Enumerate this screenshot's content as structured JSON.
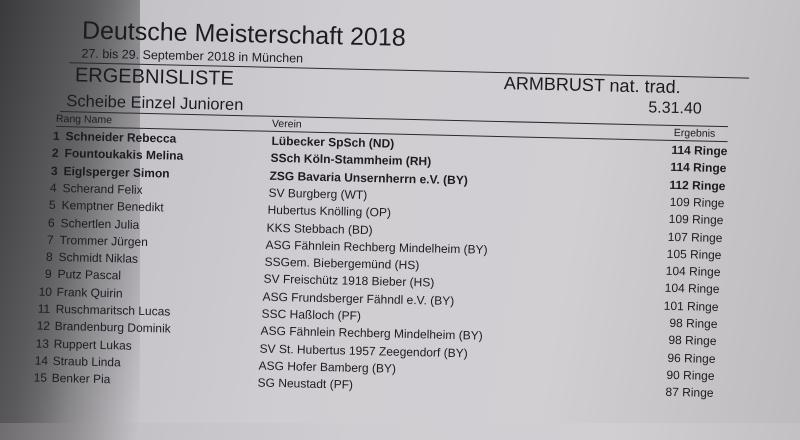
{
  "header": {
    "title": "Deutsche Meisterschaft  2018",
    "subtitle": "27. bis 29. September 2018  in  München",
    "list_title": "ERGEBNISLISTE",
    "discipline": "ARMBRUST  nat. trad.",
    "event": "Scheibe Einzel Junioren",
    "event_code": "5.31.40"
  },
  "columns": {
    "rank": "Rang",
    "name": "Name",
    "club": "Verein",
    "result": "Ergebnis"
  },
  "rows": [
    {
      "rank": "1",
      "name": "Schneider Rebecca",
      "club": "Lübecker SpSch   (ND)",
      "result": "114 Ringe",
      "bold": true
    },
    {
      "rank": "2",
      "name": "Fountoukakis Melina",
      "club": "SSch Köln-Stammheim   (RH)",
      "result": "114 Ringe",
      "bold": true
    },
    {
      "rank": "3",
      "name": "Eiglsperger Simon",
      "club": "ZSG Bavaria Unsernherrn e.V.   (BY)",
      "result": "112 Ringe",
      "bold": true
    },
    {
      "rank": "4",
      "name": "Scherand Felix",
      "club": "SV Burgberg   (WT)",
      "result": "109 Ringe"
    },
    {
      "rank": "5",
      "name": "Kemptner Benedikt",
      "club": "Hubertus Knölling   (OP)",
      "result": "109 Ringe"
    },
    {
      "rank": "6",
      "name": "Schertlen Julia",
      "club": "KKS Stebbach   (BD)",
      "result": "107 Ringe"
    },
    {
      "rank": "7",
      "name": "Trommer Jürgen",
      "club": "ASG Fähnlein Rechberg Mindelheim   (BY)",
      "result": "105 Ringe"
    },
    {
      "rank": "8",
      "name": "Schmidt Niklas",
      "club": "SSGem. Biebergemünd   (HS)",
      "result": "104 Ringe"
    },
    {
      "rank": "9",
      "name": "Putz Pascal",
      "club": "SV Freischütz 1918 Bieber   (HS)",
      "result": "104 Ringe"
    },
    {
      "rank": "10",
      "name": "Frank Quirin",
      "club": "ASG Frundsberger Fähndl e.V.   (BY)",
      "result": "101 Ringe"
    },
    {
      "rank": "11",
      "name": "Ruschmaritsch Lucas",
      "club": "SSC Haßloch   (PF)",
      "result": "98 Ringe"
    },
    {
      "rank": "12",
      "name": "Brandenburg Dominik",
      "club": "ASG Fähnlein Rechberg Mindelheim   (BY)",
      "result": "98 Ringe"
    },
    {
      "rank": "13",
      "name": "Ruppert Lukas",
      "club": "SV St. Hubertus 1957 Zeegendorf   (BY)",
      "result": "96 Ringe"
    },
    {
      "rank": "14",
      "name": "Straub Linda",
      "club": "ASG Hofer Bamberg   (BY)",
      "result": "90 Ringe"
    },
    {
      "rank": "15",
      "name": "Benker Pia",
      "club": "SG Neustadt   (PF)",
      "result": "87 Ringe"
    }
  ]
}
